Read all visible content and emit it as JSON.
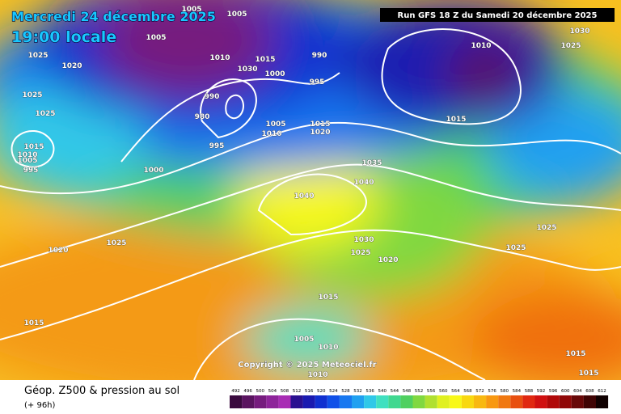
{
  "header": {
    "date": "Mercredi 24 décembre 2025",
    "time": "19:00 locale",
    "run": "Run GFS 18 Z du Samedi 20 décembre 2025"
  },
  "copyright": "Copyright © 2025 Meteociel.fr",
  "footer": {
    "title": "Géop. Z500 & pression au sol",
    "subtitle": "(+ 96h)"
  },
  "legend": {
    "values": [
      492,
      496,
      500,
      504,
      508,
      512,
      516,
      520,
      524,
      528,
      532,
      536,
      540,
      544,
      548,
      552,
      556,
      560,
      564,
      568,
      572,
      576,
      580,
      584,
      588,
      592,
      596,
      600,
      604,
      608,
      612
    ],
    "colors": [
      "#3a0a3e",
      "#5a1460",
      "#761c7e",
      "#8e249a",
      "#a82cb4",
      "#2a1090",
      "#1a1ab0",
      "#1030d0",
      "#1050e8",
      "#1878f0",
      "#20a0f0",
      "#30c8e8",
      "#40e0c0",
      "#40d890",
      "#50d060",
      "#80d840",
      "#b0e030",
      "#e0f020",
      "#f8f818",
      "#f8d810",
      "#f8b810",
      "#f89810",
      "#f07810",
      "#e85010",
      "#e02810",
      "#d01010",
      "#b00808",
      "#900808",
      "#680808",
      "#400404",
      "#100000"
    ]
  },
  "isobar_labels": [
    1005,
    1005,
    1005,
    1025,
    1020,
    1010,
    1015,
    1030,
    990,
    1000,
    995,
    1010,
    1030,
    1025,
    1025,
    1025,
    990,
    980,
    1005,
    1010,
    1015,
    1020,
    995,
    1015,
    1015,
    1010,
    1005,
    995,
    1000,
    1035,
    1040,
    1040,
    1025,
    1025,
    1020,
    1030,
    1025,
    1020,
    1025,
    1015,
    1015,
    1005,
    1010,
    1010,
    1015,
    1015
  ]
}
